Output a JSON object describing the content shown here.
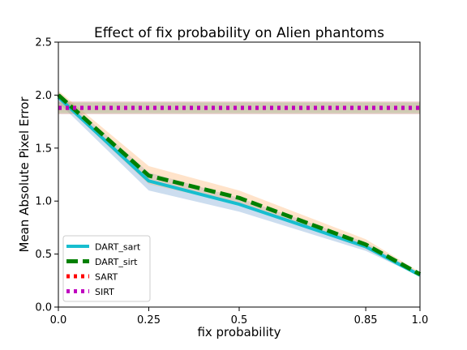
{
  "chart_data": {
    "type": "line",
    "title": "Effect of fix probability on Alien phantoms",
    "xlabel": "fix probability",
    "ylabel": "Mean Absolute Pixel Error",
    "xlim": [
      0.0,
      1.0
    ],
    "ylim": [
      0.0,
      2.5
    ],
    "x_ticks": [
      "0.0",
      "0.25",
      "0.5",
      "0.85",
      "1.0"
    ],
    "y_ticks": [
      "0.0",
      "0.5",
      "1.0",
      "1.5",
      "2.0",
      "2.5"
    ],
    "grid": false,
    "legend_position": "lower-left",
    "x": [
      0.0,
      0.25,
      0.5,
      0.85,
      1.0
    ],
    "series": [
      {
        "name": "DART_sart",
        "values": [
          1.98,
          1.19,
          0.97,
          0.57,
          0.3
        ],
        "band_lower": [
          1.93,
          1.1,
          0.9,
          0.53,
          0.29
        ],
        "band_upper": [
          2.02,
          1.27,
          1.03,
          0.61,
          0.32
        ],
        "color": "#17becf",
        "band_color": "#6c9fd2",
        "style": "solid"
      },
      {
        "name": "DART_sirt",
        "values": [
          2.0,
          1.24,
          1.03,
          0.59,
          0.31
        ],
        "band_lower": [
          1.96,
          1.16,
          0.97,
          0.55,
          0.29
        ],
        "band_upper": [
          2.04,
          1.33,
          1.1,
          0.64,
          0.33
        ],
        "color": "#008000",
        "band_color": "#ffb066",
        "style": "dashed"
      },
      {
        "name": "SART",
        "values": [
          1.88,
          1.88,
          1.88,
          1.88,
          1.88
        ],
        "band_lower": [
          1.82,
          1.82,
          1.82,
          1.82,
          1.82
        ],
        "band_upper": [
          1.94,
          1.94,
          1.94,
          1.94,
          1.94
        ],
        "color": "#ff0000",
        "band_color": "#c97a7a",
        "style": "dotted"
      },
      {
        "name": "SIRT",
        "values": [
          1.88,
          1.88,
          1.88,
          1.88,
          1.88
        ],
        "band_lower": [
          1.83,
          1.83,
          1.83,
          1.83,
          1.83
        ],
        "band_upper": [
          1.93,
          1.93,
          1.93,
          1.93,
          1.93
        ],
        "color": "#bf00bf",
        "band_color": "#9bbf7a",
        "style": "dotted"
      }
    ]
  }
}
